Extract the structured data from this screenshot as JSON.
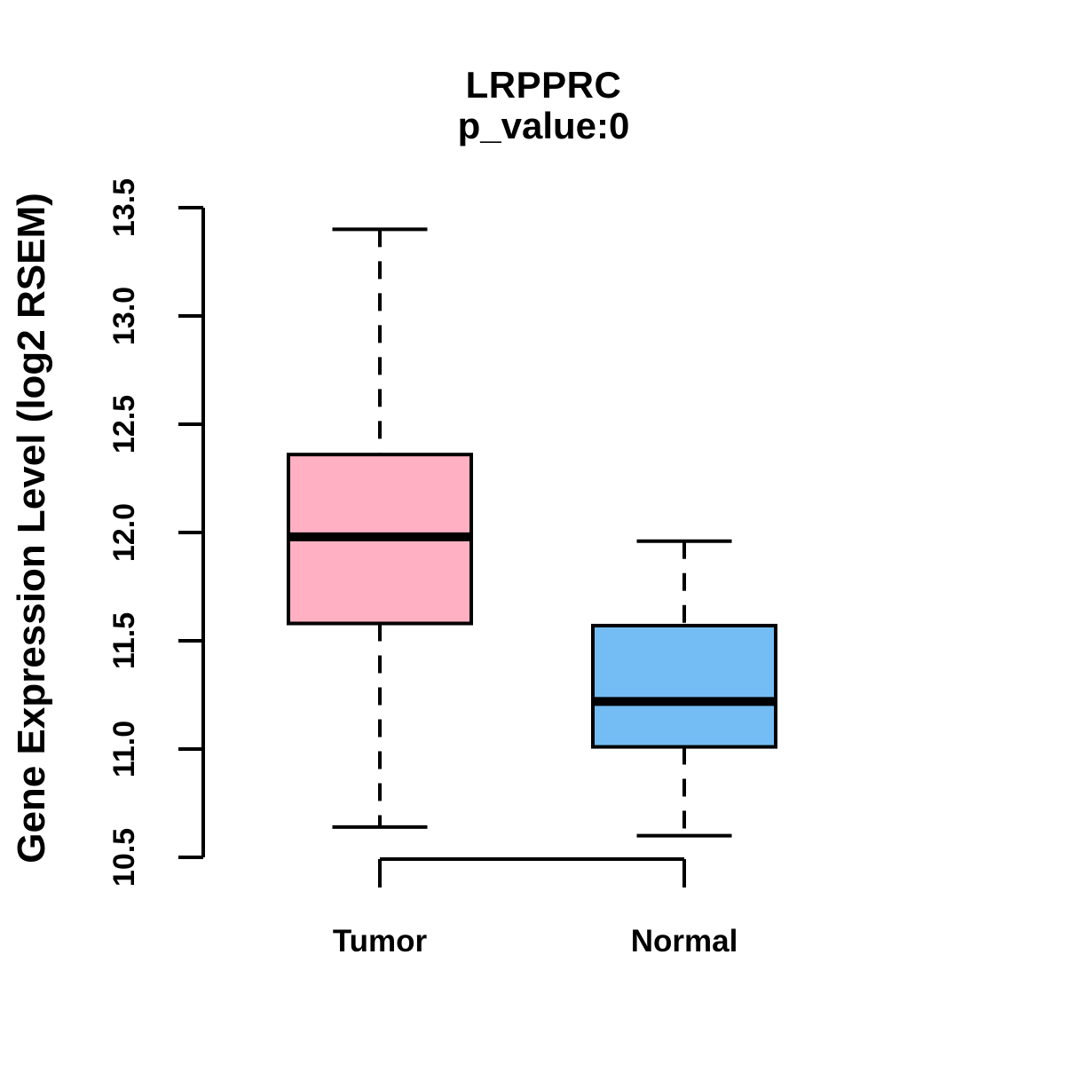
{
  "header": {
    "title": "LRPPRC",
    "subtitle": "p_value:0"
  },
  "chart_data": {
    "type": "boxplot",
    "title": "LRPPRC",
    "subtitle": "p_value:0",
    "xlabel": "",
    "ylabel": "Gene Expression Level (log2 RSEM)",
    "ylim": [
      10.5,
      13.5
    ],
    "yticks": [
      10.5,
      11.0,
      11.5,
      12.0,
      12.5,
      13.0,
      13.5
    ],
    "grid": false,
    "legend": "none",
    "categories": [
      "Tumor",
      "Normal"
    ],
    "series": [
      {
        "name": "Tumor",
        "color": "#FFB1C3",
        "whisker_low": 10.64,
        "q1": 11.58,
        "median": 11.98,
        "q3": 12.36,
        "whisker_high": 13.4,
        "outliers": []
      },
      {
        "name": "Normal",
        "color": "#74BDF4",
        "whisker_low": 10.6,
        "q1": 11.01,
        "median": 11.22,
        "q3": 11.57,
        "whisker_high": 11.96,
        "outliers": []
      }
    ],
    "colors": {
      "box_border": "#000000",
      "median_line": "#000000",
      "axis": "#000000",
      "text": "#000000",
      "background": "#FFFFFF"
    }
  }
}
